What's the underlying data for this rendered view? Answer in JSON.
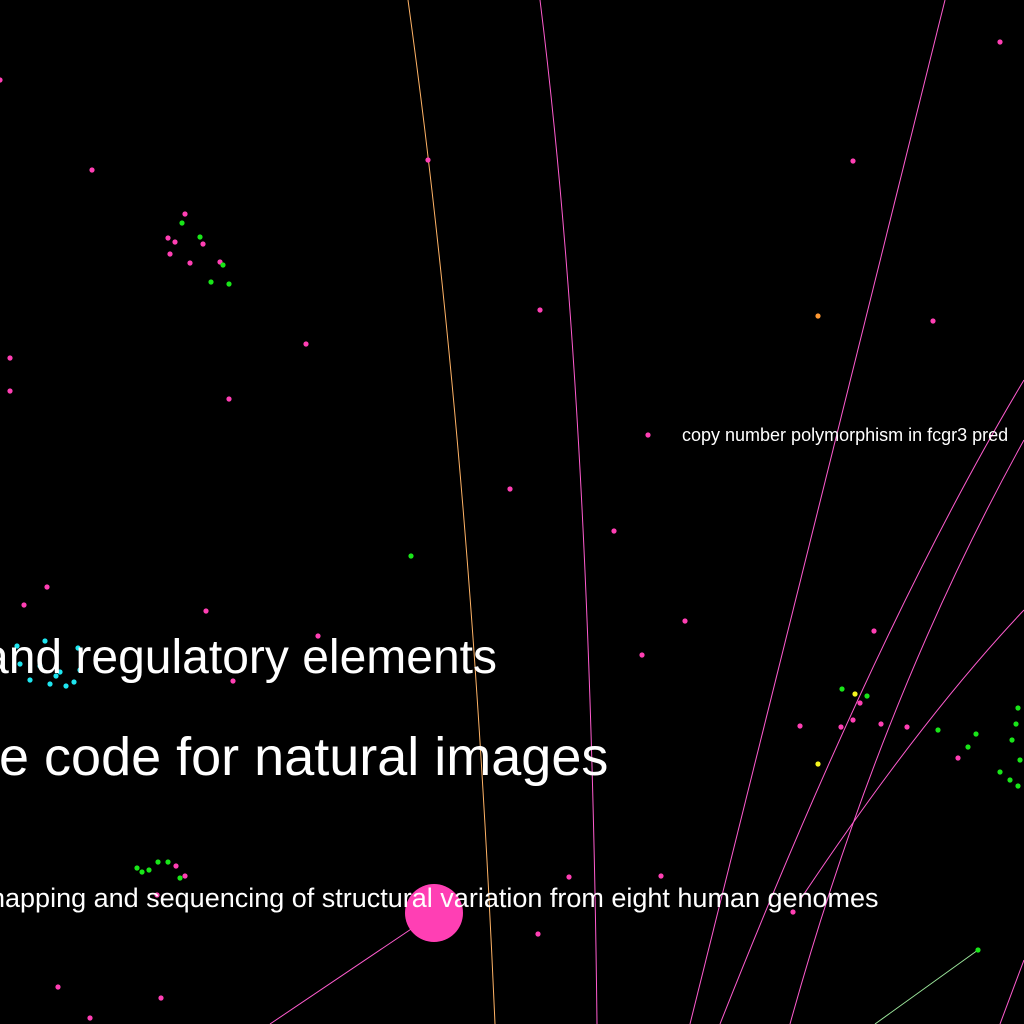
{
  "labels": {
    "fcgr3": "copy number polymorphism in fcgr3 pred",
    "regulatory": "and regulatory elements",
    "sparse_code": "se code for natural images",
    "structural_variation": "napping and sequencing of structural variation from eight human genomes"
  },
  "colors": {
    "background": "#000000",
    "pink": "#ff3fb4",
    "green": "#19e619",
    "cyan": "#1ee6f0",
    "orange": "#ff9933",
    "yellow": "#f5f51e",
    "edge_orange": "#ffb366",
    "edge_pink": "#ff5ccf",
    "edge_green": "#9be69b",
    "label": "#ffffff"
  }
}
